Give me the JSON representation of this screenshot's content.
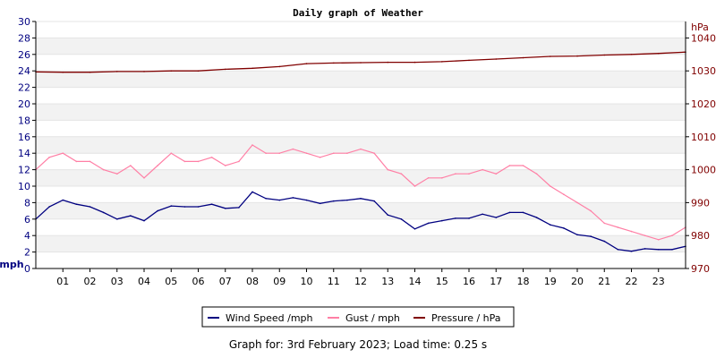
{
  "chart_data": {
    "type": "line",
    "title": "Daily graph of Weather",
    "left_axis": {
      "unit_label": "mph",
      "ylim": [
        0,
        30
      ],
      "ticks": [
        0,
        2,
        4,
        6,
        8,
        10,
        12,
        14,
        16,
        18,
        20,
        22,
        24,
        26,
        28,
        30
      ]
    },
    "right_axis": {
      "unit_label": "hPa",
      "ylim": [
        970,
        1045
      ],
      "ticks": [
        970,
        980,
        990,
        1000,
        1010,
        1020,
        1030,
        1040
      ]
    },
    "x_axis": {
      "xlim": [
        0,
        24
      ],
      "tick_labels": [
        "01",
        "02",
        "03",
        "04",
        "05",
        "06",
        "07",
        "08",
        "09",
        "10",
        "11",
        "12",
        "13",
        "14",
        "15",
        "16",
        "17",
        "18",
        "19",
        "20",
        "21",
        "22",
        "23"
      ]
    },
    "grid": "horizontal-bands",
    "legend_placement": "bottom-center",
    "series": [
      {
        "name": "Wind Speed /mph",
        "axis": "left",
        "color": "#000080",
        "x": [
          0,
          0.5,
          1,
          1.5,
          2,
          2.5,
          3,
          3.5,
          4,
          4.5,
          5,
          5.5,
          6,
          6.5,
          7,
          7.5,
          8,
          8.5,
          9,
          9.5,
          10,
          10.5,
          11,
          11.5,
          12,
          12.5,
          13,
          13.5,
          14,
          14.5,
          15,
          15.5,
          16,
          16.5,
          17,
          17.5,
          18,
          18.5,
          19,
          19.5,
          20,
          20.5,
          21,
          21.5,
          22,
          22.5,
          23,
          23.5,
          24
        ],
        "values": [
          6,
          7.5,
          8.3,
          7.8,
          7.5,
          6.8,
          6,
          6.4,
          5.8,
          7,
          7.6,
          7.5,
          7.5,
          7.8,
          7.3,
          7.4,
          9.3,
          8.5,
          8.3,
          8.6,
          8.3,
          7.9,
          8.2,
          8.3,
          8.5,
          8.2,
          6.5,
          6,
          4.8,
          5.5,
          5.8,
          6.1,
          6.1,
          6.6,
          6.2,
          6.8,
          6.8,
          6.2,
          5.3,
          4.9,
          4.1,
          3.9,
          3.3,
          2.3,
          2.1,
          2.4,
          2.3,
          2.3,
          2.7
        ]
      },
      {
        "name": "Gust / mph",
        "axis": "left",
        "color": "#ff7fa5",
        "x": [
          0,
          0.5,
          1,
          1.5,
          2,
          2.5,
          3,
          3.5,
          4,
          4.5,
          5,
          5.5,
          6,
          6.5,
          7,
          7.5,
          8,
          8.5,
          9,
          9.5,
          10,
          10.5,
          11,
          11.5,
          12,
          12.5,
          13,
          13.5,
          14,
          14.5,
          15,
          15.5,
          16,
          16.5,
          17,
          17.5,
          18,
          18.5,
          19,
          19.5,
          20,
          20.5,
          21,
          21.5,
          22,
          22.5,
          23,
          23.5,
          24
        ],
        "values": [
          12,
          13.5,
          14,
          13,
          13,
          12,
          11.5,
          12.5,
          11,
          12.5,
          14,
          13,
          13,
          13.5,
          12.5,
          13,
          15,
          14,
          14,
          14.5,
          14,
          13.5,
          14,
          14,
          14.5,
          14,
          12,
          11.5,
          10,
          11,
          11,
          11.5,
          11.5,
          12,
          11.5,
          12.5,
          12.5,
          11.5,
          10,
          9,
          8,
          7,
          5.5,
          5,
          4.5,
          4,
          3.5,
          4,
          5
        ]
      },
      {
        "name": "Pressure / hPa",
        "axis": "right",
        "color": "#800000",
        "x": [
          0,
          1,
          2,
          3,
          4,
          5,
          6,
          7,
          8,
          9,
          10,
          11,
          12,
          13,
          14,
          15,
          16,
          17,
          18,
          19,
          20,
          21,
          22,
          23,
          24
        ],
        "values": [
          1029.7,
          1029.6,
          1029.6,
          1029.8,
          1029.8,
          1030,
          1030,
          1030.5,
          1030.8,
          1031.3,
          1032.2,
          1032.4,
          1032.5,
          1032.6,
          1032.6,
          1032.8,
          1033.2,
          1033.6,
          1034,
          1034.4,
          1034.5,
          1034.8,
          1035,
          1035.3,
          1035.7
        ]
      }
    ],
    "footer": "Graph for: 3rd February 2023; Load time: 0.25 s"
  }
}
